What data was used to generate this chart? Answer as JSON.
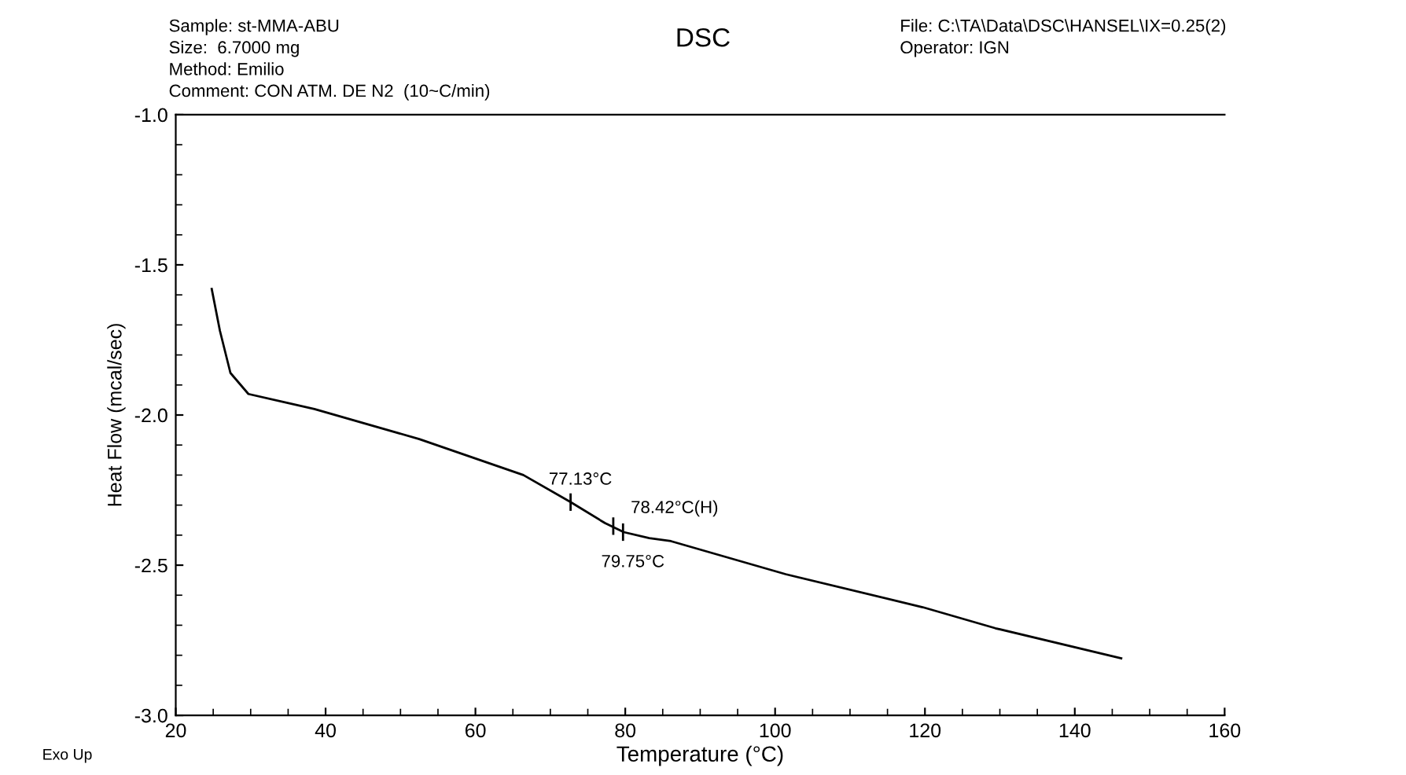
{
  "chart_data": {
    "type": "line",
    "title": "DSC",
    "xlabel": "Temperature (°C)",
    "ylabel": "Heat Flow (mcal/sec)",
    "x": [
      24.8,
      25.9,
      27.3,
      29.7,
      38.5,
      52.5,
      66.4,
      72.7,
      77.3,
      79.8,
      83.2,
      86.1,
      101.4,
      119.7,
      129.4,
      146.2
    ],
    "series": [
      {
        "color": "#000000",
        "values": [
          -1.58,
          -1.72,
          -1.86,
          -1.93,
          -1.98,
          -2.08,
          -2.2,
          -2.29,
          -2.36,
          -2.39,
          -2.41,
          -2.42,
          -2.53,
          -2.64,
          -2.71,
          -2.81
        ]
      }
    ],
    "xlim": [
      20,
      160
    ],
    "xticks": [
      20,
      40,
      60,
      80,
      100,
      120,
      140,
      160
    ],
    "ylim": [
      -3.0,
      -1.0
    ],
    "yticks": [
      {
        "value": -3.0,
        "label": "-3.0"
      },
      {
        "value": -2.5,
        "label": "-2.5"
      },
      {
        "value": -2.0,
        "label": "-2.0"
      },
      {
        "value": -1.5,
        "label": "-1.5"
      },
      {
        "value": -1.0,
        "label": "-1.0"
      }
    ],
    "grid": false,
    "legend": false,
    "marker": "none",
    "line_style": "solid",
    "annotations": [
      "Sample: st-MMA-ABU",
      "Size:  6.7000 mg",
      "Method: Emilio",
      "Comment: CON ATM. DE N2  (10~C/min)",
      "File: C:\\TA\\Data\\DSC\\HANSEL\\IX=0.25(2)",
      "Operator: IGN",
      "Exo Up",
      {
        "text": "77.13°C",
        "x": 72.7,
        "y": -2.29
      },
      {
        "text": "78.42°C(H)",
        "x": 78.4,
        "y": -2.37
      },
      {
        "text": "79.75°C",
        "x": 79.7,
        "y": -2.39
      }
    ]
  }
}
